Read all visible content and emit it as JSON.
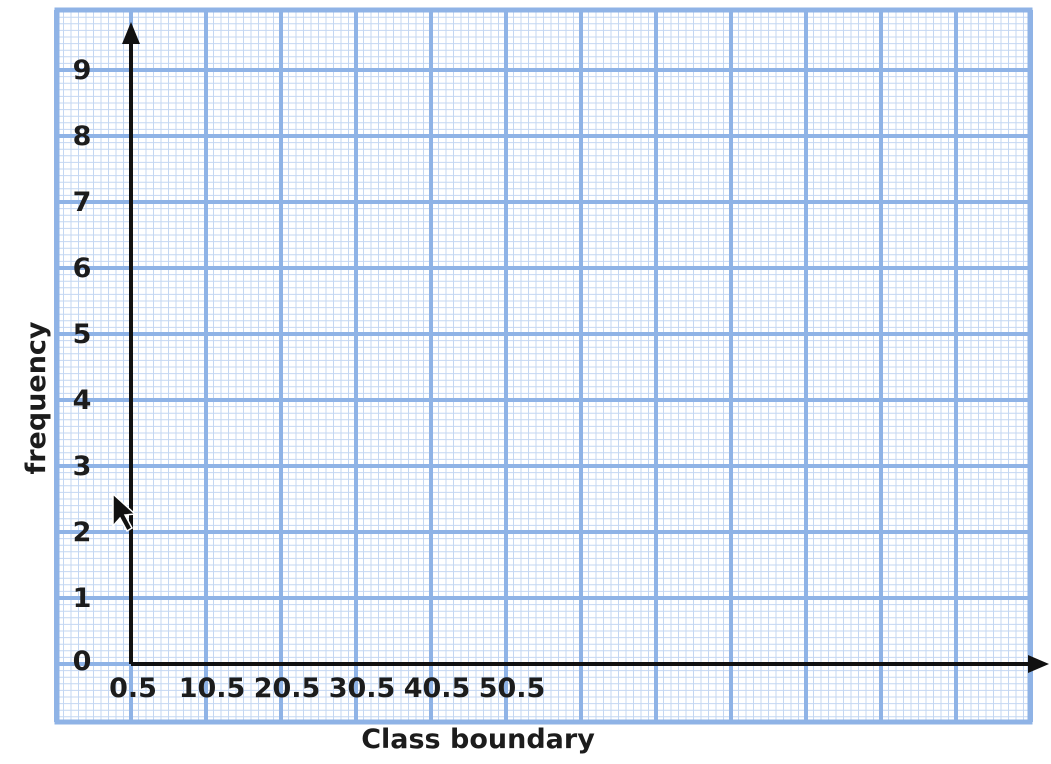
{
  "chart_data": {
    "type": "line",
    "title": "",
    "xlabel": "Class boundary",
    "ylabel": "frequency",
    "x_ticks": [
      "0.5",
      "10.5",
      "20.5",
      "30.5",
      "40.5",
      "50.5"
    ],
    "y_ticks": [
      "0",
      "1",
      "2",
      "3",
      "4",
      "5",
      "6",
      "7",
      "8",
      "9"
    ],
    "xlim": [
      0.5,
      60.5
    ],
    "ylim": [
      0,
      9.5
    ],
    "series": [],
    "grid": true,
    "colors": {
      "major_grid": "#8fb3e6",
      "minor_grid": "#c4d7f2",
      "axes": "#111111",
      "text": "#1c1c1c"
    }
  }
}
